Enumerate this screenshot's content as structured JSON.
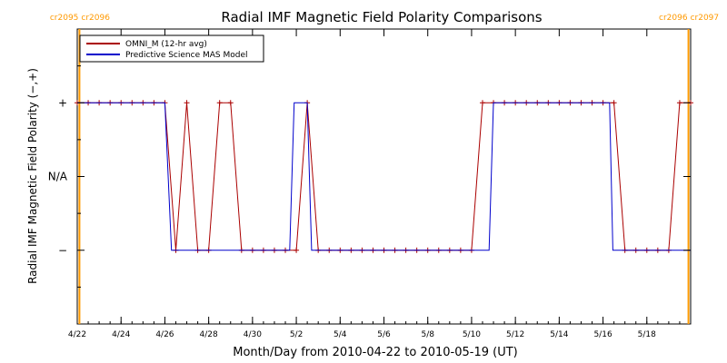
{
  "chart_data": {
    "type": "line",
    "title": "Radial IMF Magnetic Field Polarity Comparisons",
    "xlabel": "Month/Day from 2010-04-22 to 2010-05-19 (UT)",
    "ylabel": "Radial IMF Magnetic Field Polarity (−,+)",
    "x_unit": "days from 2010-04-22",
    "xlim": [
      0,
      28
    ],
    "ylim": [
      -2,
      2
    ],
    "x_ticks": [
      {
        "x": 0,
        "label": "4/22"
      },
      {
        "x": 2,
        "label": "4/24"
      },
      {
        "x": 4,
        "label": "4/26"
      },
      {
        "x": 6,
        "label": "4/28"
      },
      {
        "x": 8,
        "label": "4/30"
      },
      {
        "x": 10,
        "label": "5/2"
      },
      {
        "x": 12,
        "label": "5/4"
      },
      {
        "x": 14,
        "label": "5/6"
      },
      {
        "x": 16,
        "label": "5/8"
      },
      {
        "x": 18,
        "label": "5/10"
      },
      {
        "x": 20,
        "label": "5/12"
      },
      {
        "x": 22,
        "label": "5/14"
      },
      {
        "x": 24,
        "label": "5/16"
      },
      {
        "x": 26,
        "label": "5/18"
      }
    ],
    "y_ticks": [
      {
        "y": 1,
        "label": "+"
      },
      {
        "y": 0,
        "label": "N/A"
      },
      {
        "y": -1,
        "label": "−"
      }
    ],
    "carrington_markers": [
      {
        "x": 0.1,
        "label_left": "cr2095",
        "label_right": "cr2096"
      },
      {
        "x": 27.9,
        "label_left": "cr2096",
        "label_right": "cr2097"
      }
    ],
    "legend_position": "top-left",
    "series": [
      {
        "name": "OMNI_M (12-hr avg)",
        "color": "#aa0000",
        "markers": true,
        "points": [
          [
            0.0,
            1
          ],
          [
            0.5,
            1
          ],
          [
            1.0,
            1
          ],
          [
            1.5,
            1
          ],
          [
            2.0,
            1
          ],
          [
            2.5,
            1
          ],
          [
            3.0,
            1
          ],
          [
            3.5,
            1
          ],
          [
            4.0,
            1
          ],
          [
            4.5,
            -1
          ],
          [
            5.0,
            1
          ],
          [
            5.5,
            -1
          ],
          [
            6.0,
            -1
          ],
          [
            6.5,
            1
          ],
          [
            7.0,
            1
          ],
          [
            7.5,
            -1
          ],
          [
            8.0,
            -1
          ],
          [
            8.5,
            -1
          ],
          [
            9.0,
            -1
          ],
          [
            9.5,
            -1
          ],
          [
            10.0,
            -1
          ],
          [
            10.5,
            1
          ],
          [
            11.0,
            -1
          ],
          [
            11.5,
            -1
          ],
          [
            12.0,
            -1
          ],
          [
            12.5,
            -1
          ],
          [
            13.0,
            -1
          ],
          [
            13.5,
            -1
          ],
          [
            14.0,
            -1
          ],
          [
            14.5,
            -1
          ],
          [
            15.0,
            -1
          ],
          [
            15.5,
            -1
          ],
          [
            16.0,
            -1
          ],
          [
            16.5,
            -1
          ],
          [
            17.0,
            -1
          ],
          [
            17.5,
            -1
          ],
          [
            18.0,
            -1
          ],
          [
            18.5,
            1
          ],
          [
            19.0,
            1
          ],
          [
            19.5,
            1
          ],
          [
            20.0,
            1
          ],
          [
            20.5,
            1
          ],
          [
            21.0,
            1
          ],
          [
            21.5,
            1
          ],
          [
            22.0,
            1
          ],
          [
            22.5,
            1
          ],
          [
            23.0,
            1
          ],
          [
            23.5,
            1
          ],
          [
            24.0,
            1
          ],
          [
            24.5,
            1
          ],
          [
            25.0,
            -1
          ],
          [
            25.5,
            -1
          ],
          [
            26.0,
            -1
          ],
          [
            26.5,
            -1
          ],
          [
            27.0,
            -1
          ],
          [
            27.5,
            1
          ],
          [
            28.0,
            1
          ]
        ]
      },
      {
        "name": "Predictive Science MAS Model",
        "color": "#0000cc",
        "markers": false,
        "points": [
          [
            0.0,
            1
          ],
          [
            4.0,
            1
          ],
          [
            4.3,
            -1
          ],
          [
            9.7,
            -1
          ],
          [
            9.9,
            1
          ],
          [
            10.5,
            1
          ],
          [
            10.7,
            -1
          ],
          [
            18.8,
            -1
          ],
          [
            19.0,
            1
          ],
          [
            24.3,
            1
          ],
          [
            24.45,
            -1
          ],
          [
            28.0,
            -1
          ]
        ]
      }
    ]
  }
}
